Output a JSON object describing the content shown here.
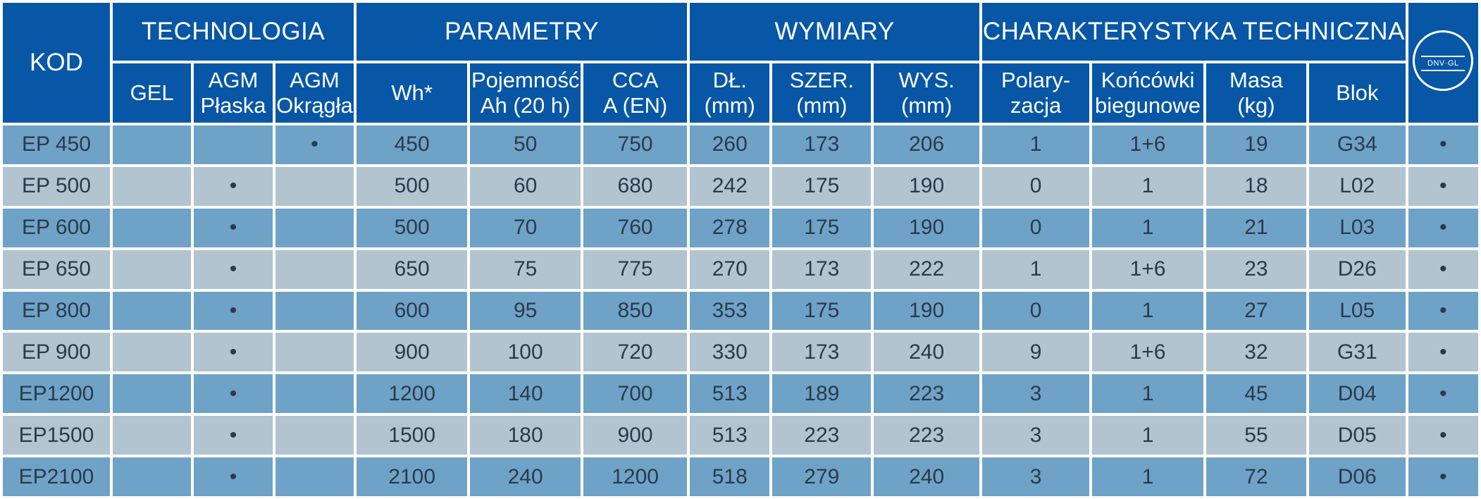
{
  "headers": {
    "kod": "KOD",
    "groups": {
      "technologia": "TECHNOLOGIA",
      "parametry": "PARAMETRY",
      "wymiary": "WYMIARY",
      "charakterystyka": "CHARAKTERYSTYKA TECHNICZNA"
    },
    "sub": {
      "gel": "GEL",
      "agm_flat_1": "AGM",
      "agm_flat_2": "Płaska",
      "agm_round_1": "AGM",
      "agm_round_2": "Okrągła",
      "wh": "Wh*",
      "ah_1": "Pojemność",
      "ah_2": "Ah (20 h)",
      "cca_1": "CCA",
      "cca_2": "A (EN)",
      "dl_1": "DŁ.",
      "dl_2": "(mm)",
      "szer_1": "SZER.",
      "szer_2": "(mm)",
      "wys_1": "WYS.",
      "wys_2": "(mm)",
      "pol_1": "Polary-",
      "pol_2": "zacja",
      "konc_1": "Końcówki",
      "konc_2": "biegunowe",
      "masa_1": "Masa",
      "masa_2": "(kg)",
      "blok": "Blok"
    },
    "cert_logo": {
      "icon": "dnv-gl-type-approved-badge",
      "text": "DNV·GL"
    }
  },
  "colors": {
    "header": "#0757a6",
    "row_a": "#6fa2c7",
    "row_b": "#b2c4cf"
  },
  "rows": [
    {
      "kod": "EP 450",
      "gel": "",
      "agm_flat": "",
      "agm_round": "•",
      "wh": "450",
      "ah": "50",
      "cca": "750",
      "dl": "260",
      "szer": "173",
      "wys": "206",
      "pol": "1",
      "konc": "1+6",
      "masa": "19",
      "blok": "G34",
      "cert": "•"
    },
    {
      "kod": "EP 500",
      "gel": "",
      "agm_flat": "•",
      "agm_round": "",
      "wh": "500",
      "ah": "60",
      "cca": "680",
      "dl": "242",
      "szer": "175",
      "wys": "190",
      "pol": "0",
      "konc": "1",
      "masa": "18",
      "blok": "L02",
      "cert": "•"
    },
    {
      "kod": "EP 600",
      "gel": "",
      "agm_flat": "•",
      "agm_round": "",
      "wh": "500",
      "ah": "70",
      "cca": "760",
      "dl": "278",
      "szer": "175",
      "wys": "190",
      "pol": "0",
      "konc": "1",
      "masa": "21",
      "blok": "L03",
      "cert": "•"
    },
    {
      "kod": "EP 650",
      "gel": "",
      "agm_flat": "•",
      "agm_round": "",
      "wh": "650",
      "ah": "75",
      "cca": "775",
      "dl": "270",
      "szer": "173",
      "wys": "222",
      "pol": "1",
      "konc": "1+6",
      "masa": "23",
      "blok": "D26",
      "cert": "•"
    },
    {
      "kod": "EP 800",
      "gel": "",
      "agm_flat": "•",
      "agm_round": "",
      "wh": "600",
      "ah": "95",
      "cca": "850",
      "dl": "353",
      "szer": "175",
      "wys": "190",
      "pol": "0",
      "konc": "1",
      "masa": "27",
      "blok": "L05",
      "cert": "•"
    },
    {
      "kod": "EP 900",
      "gel": "",
      "agm_flat": "•",
      "agm_round": "",
      "wh": "900",
      "ah": "100",
      "cca": "720",
      "dl": "330",
      "szer": "173",
      "wys": "240",
      "pol": "9",
      "konc": "1+6",
      "masa": "32",
      "blok": "G31",
      "cert": "•"
    },
    {
      "kod": "EP1200",
      "gel": "",
      "agm_flat": "•",
      "agm_round": "",
      "wh": "1200",
      "ah": "140",
      "cca": "700",
      "dl": "513",
      "szer": "189",
      "wys": "223",
      "pol": "3",
      "konc": "1",
      "masa": "45",
      "blok": "D04",
      "cert": "•"
    },
    {
      "kod": "EP1500",
      "gel": "",
      "agm_flat": "•",
      "agm_round": "",
      "wh": "1500",
      "ah": "180",
      "cca": "900",
      "dl": "513",
      "szer": "223",
      "wys": "223",
      "pol": "3",
      "konc": "1",
      "masa": "55",
      "blok": "D05",
      "cert": "•"
    },
    {
      "kod": "EP2100",
      "gel": "",
      "agm_flat": "•",
      "agm_round": "",
      "wh": "2100",
      "ah": "240",
      "cca": "1200",
      "dl": "518",
      "szer": "279",
      "wys": "240",
      "pol": "3",
      "konc": "1",
      "masa": "72",
      "blok": "D06",
      "cert": "•"
    }
  ]
}
